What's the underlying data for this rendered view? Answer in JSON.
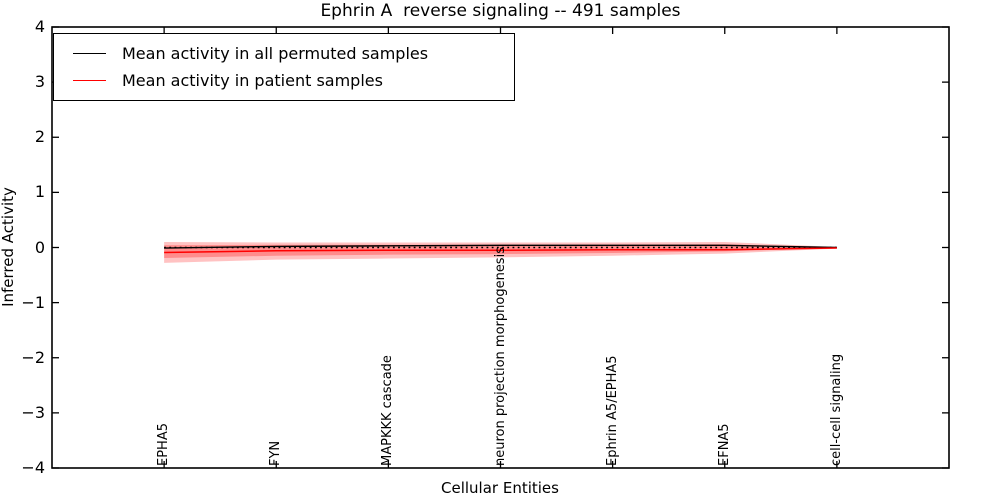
{
  "chart_data": {
    "type": "line",
    "title": "Ephrin A  reverse signaling -- 491 samples",
    "xlabel": "Cellular Entities",
    "ylabel": "Inferred Activity",
    "ylim": [
      -4,
      4
    ],
    "ytick_values": [
      4,
      3,
      2,
      1,
      0,
      -1,
      -2,
      -3,
      -4
    ],
    "ytick_labels": [
      "4",
      "3",
      "2",
      "1",
      "0",
      "−1",
      "−2",
      "−3",
      "−4"
    ],
    "grid": false,
    "categories": [
      "EPHA5",
      "FYN",
      "MAPKKK cascade",
      "neuron projection morphogenesis",
      "Ephrin A5/EPHA5",
      "EFNA5",
      "cell-cell signaling"
    ],
    "series": [
      {
        "name": "Mean activity in all permuted samples",
        "color": "#000000",
        "style": "solid",
        "width": 1.4,
        "values": [
          -0.01,
          0.02,
          0.03,
          0.04,
          0.04,
          0.04,
          0.0
        ]
      },
      {
        "name": "zero reference (dotted)",
        "color": "#000000",
        "style": "dotted",
        "width": 1.4,
        "values": [
          0,
          0,
          0,
          0,
          0,
          0,
          0
        ]
      },
      {
        "name": "Mean activity in patient samples",
        "color": "#ff0000",
        "style": "solid",
        "width": 1.5,
        "values": [
          -0.09,
          -0.06,
          -0.05,
          -0.05,
          -0.04,
          -0.04,
          -0.01
        ]
      }
    ],
    "bands": [
      {
        "name": "patient-activity-range-outer",
        "color": "#ff0000",
        "opacity": 0.24,
        "upper": [
          0.1,
          0.09,
          0.09,
          0.09,
          0.09,
          0.1,
          0.01
        ],
        "lower": [
          -0.28,
          -0.22,
          -0.2,
          -0.18,
          -0.15,
          -0.11,
          -0.02
        ]
      },
      {
        "name": "patient-activity-range-inner",
        "color": "#ff0000",
        "opacity": 0.28,
        "upper": [
          0.04,
          0.05,
          0.05,
          0.05,
          0.05,
          0.06,
          0.0
        ],
        "lower": [
          -0.19,
          -0.15,
          -0.13,
          -0.12,
          -0.1,
          -0.07,
          -0.01
        ]
      }
    ],
    "legend": {
      "position": "upper-left",
      "entries": [
        {
          "label": "Mean activity in all permuted samples",
          "color": "#000000"
        },
        {
          "label": "Mean activity in patient samples",
          "color": "#ff0000"
        }
      ]
    },
    "axis_color": "#000000"
  }
}
